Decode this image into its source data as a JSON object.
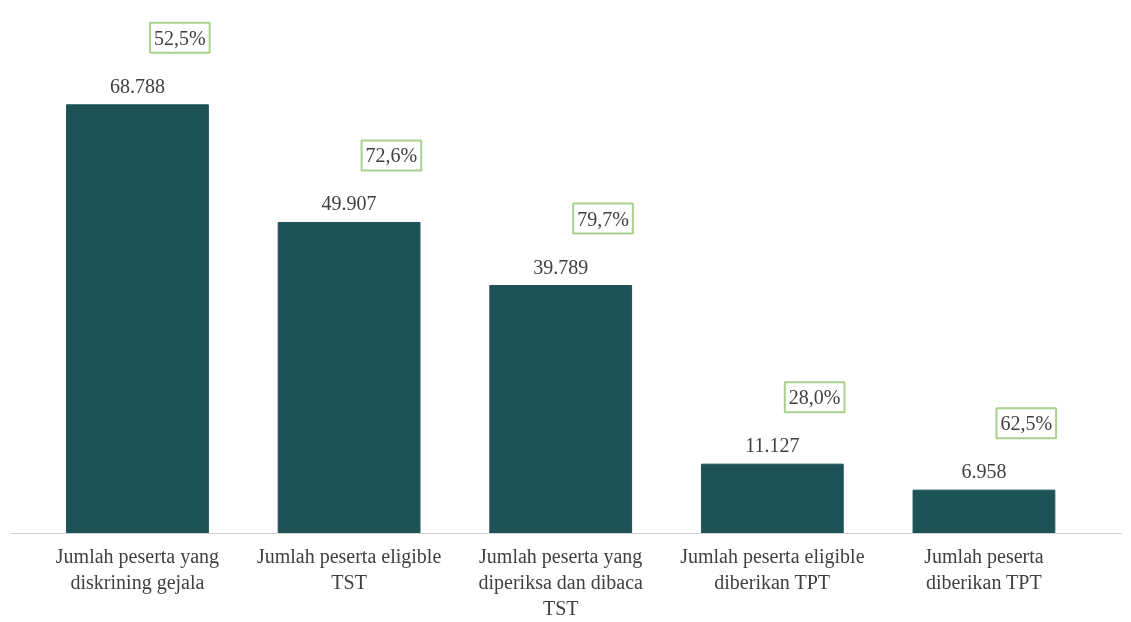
{
  "chart_data": {
    "type": "bar",
    "categories": [
      "Jumlah peserta yang diskrining gejala",
      "Jumlah peserta eligible TST",
      "Jumlah peserta yang diperiksa dan dibaca TST",
      "Jumlah peserta eligible diberikan TPT",
      "Jumlah peserta diberikan TPT"
    ],
    "values": [
      68788,
      49907,
      39789,
      11127,
      6958
    ],
    "value_labels": [
      "68.788",
      "49.907",
      "39.789",
      "11.127",
      "6.958"
    ],
    "color": "#1d5257",
    "annotations": [
      "52,5%",
      "72,6%",
      "79,7%",
      "28,0%",
      "62,5%"
    ],
    "grid": false
  }
}
